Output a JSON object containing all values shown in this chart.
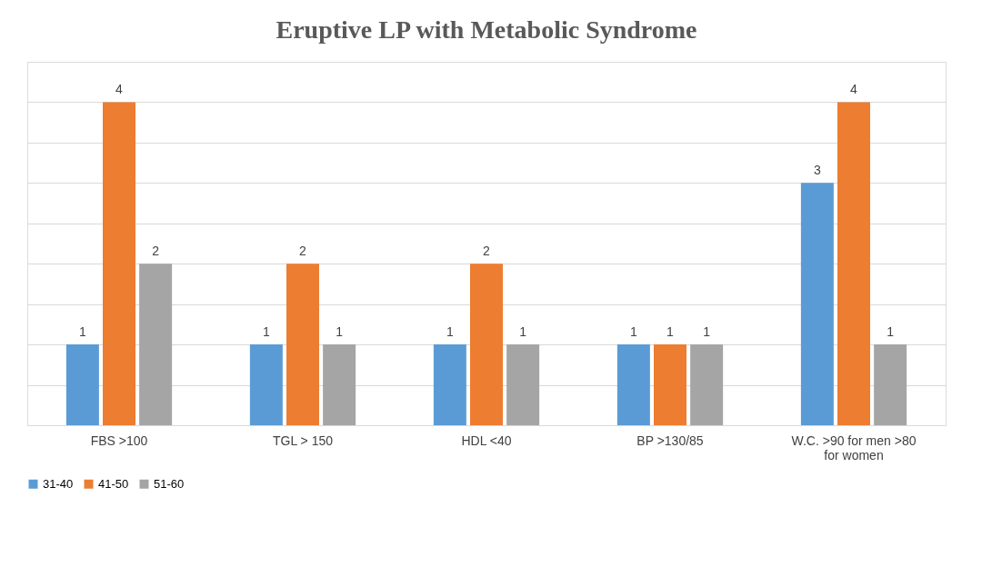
{
  "chart_data": {
    "type": "bar",
    "title": "Eruptive LP with Metabolic Syndrome",
    "categories": [
      "FBS  >100",
      "TGL > 150",
      "HDL <40",
      "BP >130/85",
      "W.C. >90 for men >80 for women"
    ],
    "series": [
      {
        "name": "31-40",
        "color": "#5b9bd5",
        "values": [
          1,
          1,
          1,
          1,
          3
        ]
      },
      {
        "name": "41-50",
        "color": "#ed7d31",
        "values": [
          4,
          2,
          2,
          1,
          4
        ]
      },
      {
        "name": "51-60",
        "color": "#a5a5a5",
        "values": [
          2,
          1,
          1,
          1,
          1
        ]
      }
    ],
    "ylim": [
      0,
      4.5
    ],
    "yticks": [
      {
        "value": 0,
        "label": null
      },
      {
        "value": 0.5,
        "label": null
      },
      {
        "value": 1,
        "label": null
      },
      {
        "value": 1.5,
        "label": null
      },
      {
        "value": 2,
        "label": null
      },
      {
        "value": 2.5,
        "label": null
      },
      {
        "value": 3,
        "label": null
      },
      {
        "value": 3.5,
        "label": null
      },
      {
        "value": 4,
        "label": null
      },
      {
        "value": 4.5,
        "label": null
      }
    ],
    "tick_labels": "x",
    "grid": "y",
    "legend": "bottom",
    "data_labels": true
  }
}
